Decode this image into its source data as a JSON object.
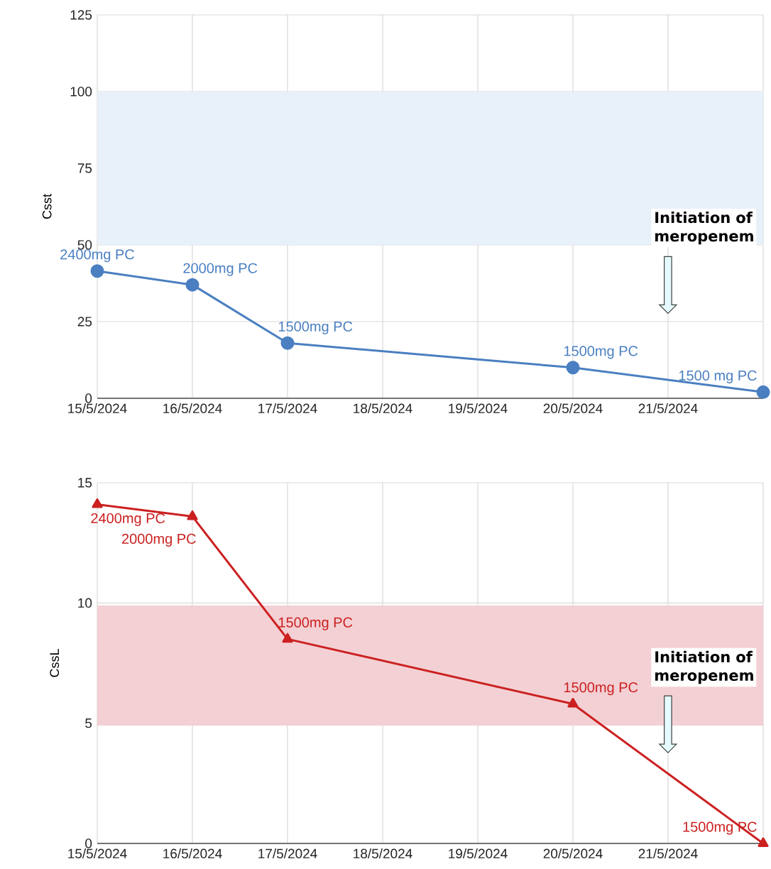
{
  "chart_data": [
    {
      "type": "line",
      "ylabel": "Csst",
      "x": [
        "2024-05-15",
        "2024-05-16",
        "2024-05-17",
        "2024-05-20",
        "2024-05-22"
      ],
      "series": [
        {
          "color": "#4a7fc1",
          "values": [
            41.5,
            37,
            18,
            10,
            2
          ]
        }
      ],
      "marker": "circle",
      "grid": true,
      "xlim": [
        "2024-05-15",
        "2024-05-22"
      ],
      "xticks": [
        {
          "value": "2024-05-15",
          "label": "15/5/2024"
        },
        {
          "value": "2024-05-16",
          "label": "16/5/2024"
        },
        {
          "value": "2024-05-17",
          "label": "17/5/2024"
        },
        {
          "value": "2024-05-18",
          "label": "18/5/2024"
        },
        {
          "value": "2024-05-19",
          "label": "19/5/2024"
        },
        {
          "value": "2024-05-20",
          "label": "20/5/2024"
        },
        {
          "value": "2024-05-21",
          "label": "21/5/2024"
        },
        {
          "value": "2024-05-22",
          "label": null
        }
      ],
      "ylim": [
        0,
        125
      ],
      "yticks": [
        0,
        25,
        50,
        75,
        100,
        125
      ],
      "bands": [
        {
          "axis": "y",
          "from": 50,
          "to": 100,
          "color": "#e8f0f9"
        }
      ],
      "annotations": [
        {
          "text": "2400mg PC",
          "x": "2024-05-15",
          "y": 41.5
        },
        {
          "text": "2000mg PC",
          "x": "2024-05-16",
          "y": 37
        },
        {
          "text": "1500mg PC",
          "x": "2024-05-17",
          "y": 18
        },
        {
          "text": "1500mg PC",
          "x": "2024-05-20",
          "y": 10
        },
        {
          "text": "1500 mg PC",
          "x": "2024-05-22",
          "y": 2
        },
        "Initiation of meropenem"
      ]
    },
    {
      "type": "line",
      "ylabel": "CssL",
      "x": [
        "2024-05-15",
        "2024-05-16",
        "2024-05-17",
        "2024-05-20",
        "2024-05-22"
      ],
      "series": [
        {
          "color": "#cc2020",
          "values": [
            14.1,
            13.6,
            8.5,
            5.8,
            0
          ]
        }
      ],
      "marker": "triangle",
      "grid": true,
      "xlim": [
        "2024-05-15",
        "2024-05-22"
      ],
      "xticks": [
        {
          "value": "2024-05-15",
          "label": "15/5/2024"
        },
        {
          "value": "2024-05-16",
          "label": "16/5/2024"
        },
        {
          "value": "2024-05-17",
          "label": "17/5/2024"
        },
        {
          "value": "2024-05-18",
          "label": "18/5/2024"
        },
        {
          "value": "2024-05-19",
          "label": "19/5/2024"
        },
        {
          "value": "2024-05-20",
          "label": "20/5/2024"
        },
        {
          "value": "2024-05-21",
          "label": "21/5/2024"
        },
        {
          "value": "2024-05-22",
          "label": null
        }
      ],
      "ylim": [
        0,
        15
      ],
      "yticks": [
        0,
        5,
        10,
        15
      ],
      "bands": [
        {
          "axis": "y",
          "from": 4.9,
          "to": 9.9,
          "color": "#f3d0d4"
        }
      ],
      "annotations": [
        {
          "text": "2400mg PC",
          "x": "2024-05-15",
          "y": 14.1
        },
        {
          "text": "2000mg PC",
          "x": "2024-05-16",
          "y": 13.6
        },
        {
          "text": "1500mg PC",
          "x": "2024-05-17",
          "y": 8.5
        },
        {
          "text": "1500mg PC",
          "x": "2024-05-20",
          "y": 5.8
        },
        {
          "text": "1500mg PC",
          "x": "2024-05-22",
          "y": 0
        },
        "Initiation of meropenem"
      ]
    }
  ]
}
